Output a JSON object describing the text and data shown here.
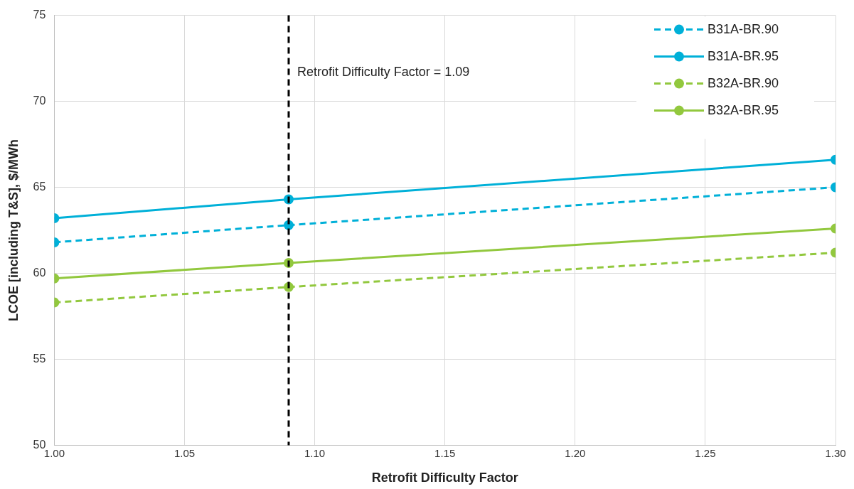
{
  "chart_data": {
    "type": "line",
    "xlabel": "Retrofit Difficulty Factor",
    "ylabel": "LCOE [including T&S], $/MWh",
    "x": [
      1.0,
      1.09,
      1.3
    ],
    "series": [
      {
        "name": "B31A-BR.90",
        "color": "#00b0d8",
        "line_style": "dashed",
        "values": [
          61.8,
          62.8,
          65.0
        ]
      },
      {
        "name": "B31A-BR.95",
        "color": "#00b0d8",
        "line_style": "solid",
        "values": [
          63.2,
          64.3,
          66.6
        ]
      },
      {
        "name": "B32A-BR.90",
        "color": "#92c83e",
        "line_style": "dashed",
        "values": [
          58.3,
          59.2,
          61.2
        ]
      },
      {
        "name": "B32A-BR.95",
        "color": "#92c83e",
        "line_style": "solid",
        "values": [
          59.7,
          60.6,
          62.6
        ]
      }
    ],
    "xlim": [
      1.0,
      1.3
    ],
    "xticks": [
      {
        "value": 1.0,
        "label": "1.00"
      },
      {
        "value": 1.05,
        "label": "1.05"
      },
      {
        "value": 1.1,
        "label": "1.10"
      },
      {
        "value": 1.15,
        "label": "1.15"
      },
      {
        "value": 1.2,
        "label": "1.20"
      },
      {
        "value": 1.25,
        "label": "1.25"
      },
      {
        "value": 1.3,
        "label": "1.30"
      }
    ],
    "ylim": [
      50,
      75
    ],
    "yticks": [
      50,
      55,
      60,
      65,
      70,
      75
    ],
    "ref_lines": [
      {
        "axis": "x",
        "value": 1.09,
        "label": "Retrofit Difficulty Factor = 1.09",
        "color": "#000000",
        "line_style": "dashed"
      }
    ],
    "grid": true,
    "legend": "top right",
    "marker": "circle"
  }
}
